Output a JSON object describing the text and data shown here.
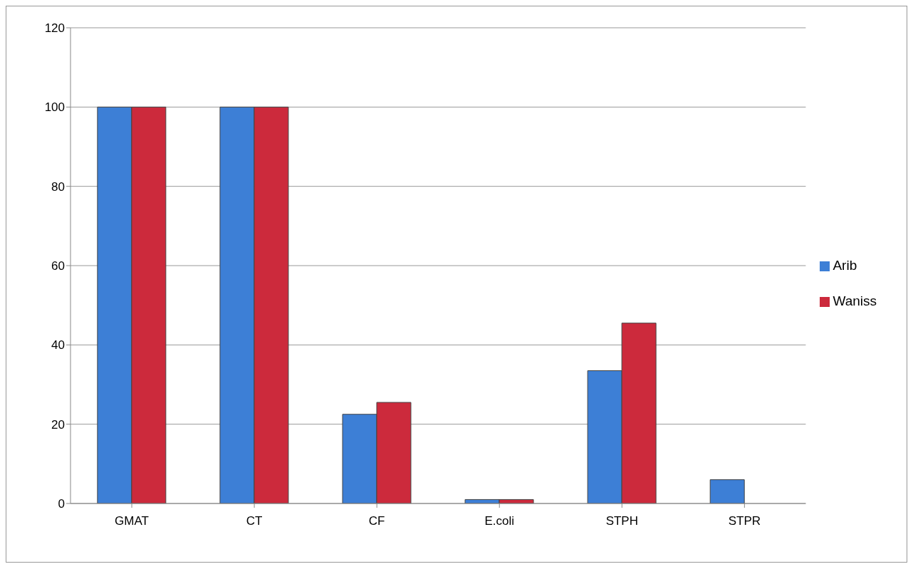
{
  "chart_data": {
    "type": "bar",
    "categories": [
      "GMAT",
      "CT",
      "CF",
      "E.coli",
      "STPH",
      "STPR"
    ],
    "series": [
      {
        "name": "Arib",
        "color": "#3d7fd6",
        "values": [
          100,
          100,
          22.5,
          1,
          33.5,
          6
        ]
      },
      {
        "name": "Waniss",
        "color": "#cc2a3c",
        "values": [
          100,
          100,
          25.5,
          1,
          45.5,
          0
        ]
      }
    ],
    "ylim": [
      0,
      120
    ],
    "yticks": [
      0,
      20,
      40,
      60,
      80,
      100,
      120
    ],
    "grid": "y",
    "legend": "right"
  }
}
